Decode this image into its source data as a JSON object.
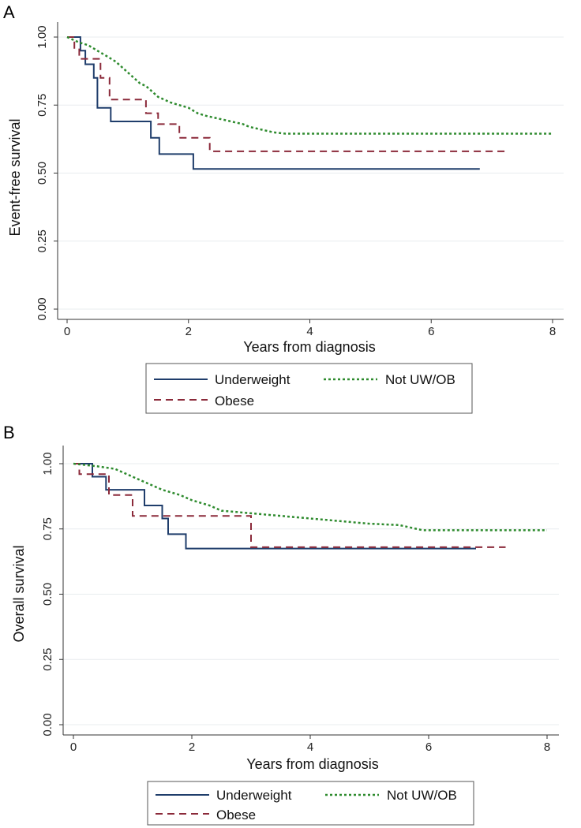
{
  "chart_data": [
    {
      "type": "line",
      "panel_label": "A",
      "xlabel": "Years from diagnosis",
      "ylabel": "Event-free survival",
      "xlim": [
        0,
        8
      ],
      "ylim": [
        0,
        1
      ],
      "xticks": [
        "0",
        "2",
        "4",
        "6",
        "8"
      ],
      "yticks": [
        "0.00",
        "0.25",
        "0.50",
        "0.75",
        "1.00"
      ],
      "grid": true,
      "legend_position": "bottom",
      "series": [
        {
          "name": "Underweight",
          "style": "solid",
          "color": "#1f3d6b",
          "x": [
            0,
            0.22,
            0.22,
            0.3,
            0.3,
            0.44,
            0.44,
            0.5,
            0.5,
            0.72,
            0.72,
            1.38,
            1.38,
            1.52,
            1.52,
            2.08,
            2.08,
            6.8
          ],
          "y": [
            1.0,
            1.0,
            0.95,
            0.95,
            0.9,
            0.9,
            0.85,
            0.85,
            0.74,
            0.74,
            0.69,
            0.69,
            0.63,
            0.63,
            0.57,
            0.57,
            0.515,
            0.515
          ]
        },
        {
          "name": "Obese",
          "style": "dashed",
          "color": "#8b2a3a",
          "x": [
            0,
            0.12,
            0.12,
            0.2,
            0.2,
            0.55,
            0.55,
            0.7,
            0.7,
            1.3,
            1.3,
            1.5,
            1.5,
            1.85,
            1.85,
            2.35,
            2.35,
            7.25
          ],
          "y": [
            1.0,
            1.0,
            0.96,
            0.96,
            0.92,
            0.92,
            0.85,
            0.85,
            0.77,
            0.77,
            0.72,
            0.72,
            0.68,
            0.68,
            0.63,
            0.63,
            0.58,
            0.58
          ]
        },
        {
          "name": "Not UW/OB",
          "style": "dotted",
          "color": "#2e8b2e",
          "x": [
            0,
            0.2,
            0.35,
            0.5,
            0.65,
            0.8,
            0.9,
            1.0,
            1.1,
            1.2,
            1.3,
            1.4,
            1.5,
            1.6,
            1.7,
            1.85,
            2.0,
            2.15,
            2.3,
            2.5,
            2.7,
            2.9,
            3.0,
            3.2,
            3.4,
            3.6,
            4.0,
            5.0,
            6.0,
            8.0
          ],
          "y": [
            1.0,
            0.98,
            0.97,
            0.95,
            0.93,
            0.91,
            0.89,
            0.87,
            0.85,
            0.83,
            0.82,
            0.8,
            0.78,
            0.77,
            0.76,
            0.75,
            0.74,
            0.72,
            0.71,
            0.7,
            0.69,
            0.68,
            0.67,
            0.66,
            0.65,
            0.645,
            0.645,
            0.645,
            0.645,
            0.645
          ]
        }
      ]
    },
    {
      "type": "line",
      "panel_label": "B",
      "xlabel": "Years from diagnosis",
      "ylabel": "Overall survival",
      "xlim": [
        0,
        8
      ],
      "ylim": [
        0,
        1
      ],
      "xticks": [
        "0",
        "2",
        "4",
        "6",
        "8"
      ],
      "yticks": [
        "0.00",
        "0.25",
        "0.50",
        "0.75",
        "1.00"
      ],
      "grid": true,
      "legend_position": "bottom",
      "series": [
        {
          "name": "Underweight",
          "style": "solid",
          "color": "#1f3d6b",
          "x": [
            0,
            0.32,
            0.32,
            0.55,
            0.55,
            1.2,
            1.2,
            1.5,
            1.5,
            1.6,
            1.6,
            1.9,
            1.9,
            6.8
          ],
          "y": [
            1.0,
            1.0,
            0.95,
            0.95,
            0.9,
            0.9,
            0.84,
            0.84,
            0.79,
            0.79,
            0.73,
            0.73,
            0.675,
            0.675
          ]
        },
        {
          "name": "Obese",
          "style": "dashed",
          "color": "#8b2a3a",
          "x": [
            0,
            0.1,
            0.1,
            0.6,
            0.6,
            1.0,
            1.0,
            3.0,
            3.0,
            7.3
          ],
          "y": [
            1.0,
            1.0,
            0.96,
            0.96,
            0.88,
            0.88,
            0.8,
            0.8,
            0.68,
            0.68
          ]
        },
        {
          "name": "Not UW/OB",
          "style": "dotted",
          "color": "#2e8b2e",
          "x": [
            0,
            0.4,
            0.7,
            0.9,
            1.1,
            1.3,
            1.5,
            1.8,
            2.0,
            2.3,
            2.5,
            3.0,
            3.5,
            4.0,
            4.5,
            5.0,
            5.5,
            5.9,
            6.0,
            8.0
          ],
          "y": [
            1.0,
            0.99,
            0.98,
            0.96,
            0.94,
            0.92,
            0.9,
            0.88,
            0.86,
            0.84,
            0.82,
            0.81,
            0.8,
            0.79,
            0.78,
            0.77,
            0.765,
            0.745,
            0.745,
            0.745
          ]
        }
      ]
    }
  ]
}
